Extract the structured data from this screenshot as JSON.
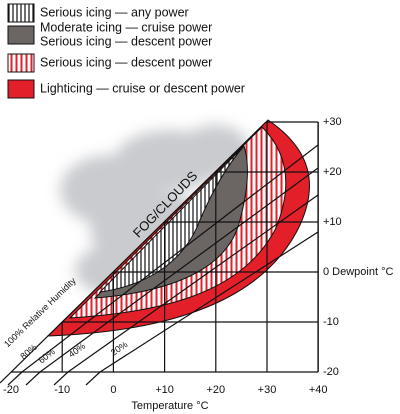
{
  "legend": [
    {
      "lines": [
        "Serious icing — any power"
      ]
    },
    {
      "lines": [
        "Moderate icing — cruise power",
        "Serious icing — descent power"
      ]
    },
    {
      "lines": [
        "Serious icing — descent power"
      ]
    },
    {
      "lines": [
        "Lighticing — cruise or descent power"
      ]
    }
  ],
  "x_axis": {
    "label": "Temperature °C",
    "ticks": [
      "-20",
      "-10",
      "0",
      "+10",
      "+20",
      "+30",
      "+40"
    ]
  },
  "y_axis": {
    "ticks": [
      "+30",
      "+20",
      "+10",
      "0 Dewpoint °C",
      "-10",
      "-20"
    ]
  },
  "region_label": "FOG/CLOUDS",
  "humidity_labels": [
    "100% Relative Humidity",
    "80%",
    "60%",
    "40%",
    "20%"
  ]
}
